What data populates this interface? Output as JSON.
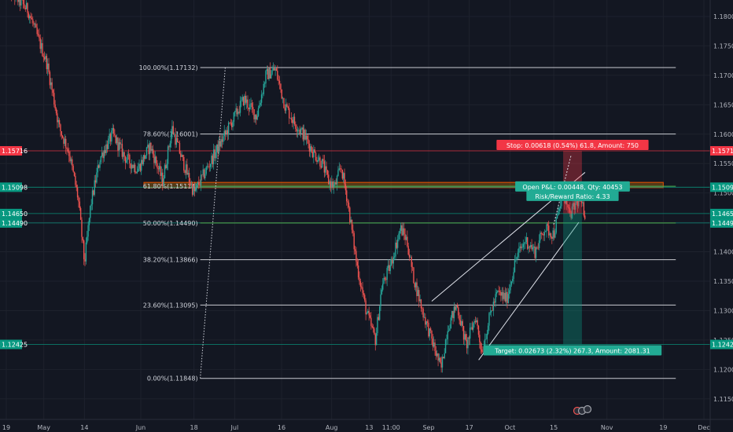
{
  "chart_data": {
    "type": "candlestick",
    "x_ticks": [
      {
        "label": "19",
        "day": 0
      },
      {
        "label": "May",
        "day": 12
      },
      {
        "label": "14",
        "day": 25
      },
      {
        "label": "Jun",
        "day": 43
      },
      {
        "label": "18",
        "day": 60
      },
      {
        "label": "Jul",
        "day": 73
      },
      {
        "label": "16",
        "day": 88
      },
      {
        "label": "Aug",
        "day": 104
      },
      {
        "label": "13",
        "day": 116
      },
      {
        "label": "11:00",
        "day": 123
      },
      {
        "label": "Sep",
        "day": 135
      },
      {
        "label": "17",
        "day": 148
      },
      {
        "label": "Oct",
        "day": 161
      },
      {
        "label": "15",
        "day": 175
      },
      {
        "label": "Nov",
        "day": 192
      },
      {
        "label": "19",
        "day": 210
      },
      {
        "label": "Dec",
        "day": 223
      }
    ],
    "y_ticks": [
      1.18,
      1.175,
      1.17,
      1.165,
      1.16,
      1.155,
      1.15,
      1.145,
      1.14,
      1.135,
      1.13,
      1.125,
      1.12,
      1.115
    ],
    "y_tick_labels": [
      "1.18000",
      "1.17500",
      "1.17000",
      "1.16500",
      "1.16000",
      "1.15500",
      "1.15000",
      "1.14500",
      "1.14000",
      "1.13500",
      "1.13000",
      "1.12500",
      "1.12000",
      "1.11500"
    ],
    "ylim": [
      1.1115,
      1.1828
    ],
    "xlim": [
      -2,
      225
    ],
    "fib_levels": [
      {
        "label": "100.00%(1.17132)",
        "value": 1.17132
      },
      {
        "label": "78.60%(1.16001)",
        "value": 1.16001
      },
      {
        "label": "61.80%(1.15114)",
        "value": 1.15114
      },
      {
        "label": "50.00%(1.14490)",
        "value": 1.1449
      },
      {
        "label": "38.20%(1.13866)",
        "value": 1.13866
      },
      {
        "label": "23.60%(1.13095)",
        "value": 1.13095
      },
      {
        "label": "0.00%(1.11848)",
        "value": 1.11848
      }
    ],
    "fib_x_start_day": 62,
    "fib_x_end_day": 214,
    "fib_diagonal": {
      "from_day": 62,
      "from_value": 1.11848,
      "to_day": 70,
      "to_value": 1.17132
    },
    "zone_rect": {
      "from_day": 44,
      "to_day": 210,
      "top": 1.1518,
      "bottom": 1.1509
    },
    "channel": {
      "upper": {
        "from_day": 136,
        "from_value": 1.1316,
        "to_day": 185,
        "to_value": 1.1535
      },
      "lower": {
        "from_day": 151,
        "from_value": 1.1216,
        "to_day": 183,
        "to_value": 1.145
      }
    },
    "price_lines": [
      {
        "value": 1.15716,
        "label": "1.15716",
        "color": "#f23645"
      },
      {
        "value": 1.15098,
        "label": "1.15098",
        "color": "#089981"
      },
      {
        "value": 1.1465,
        "label": "1.14650",
        "color": "#089981"
      },
      {
        "value": 1.1449,
        "label": "1.14490",
        "color": "#089981"
      },
      {
        "value": 1.12425,
        "label": "1.12425",
        "color": "#089981"
      }
    ],
    "position": {
      "from_day": 178,
      "to_day": 184,
      "entry": 1.1465,
      "stop": 1.15716,
      "target": 1.12425,
      "stop_label": "Stop: 0.00618 (0.54%) 61.8, Amount: 750",
      "open_label": "Open P&L: 0.00448, Qty: 40453",
      "rr_label": "Risk/Reward Ratio: 4.33",
      "target_label": "Target: 0.02673 (2.32%) 267.3, Amount: 2081.31"
    },
    "anchors": [
      [
        0,
        1.185
      ],
      [
        7,
        1.181
      ],
      [
        13,
        1.172
      ],
      [
        17,
        1.161
      ],
      [
        20,
        1.157
      ],
      [
        23,
        1.149
      ],
      [
        25,
        1.138
      ],
      [
        27,
        1.148
      ],
      [
        30,
        1.156
      ],
      [
        34,
        1.16
      ],
      [
        38,
        1.156
      ],
      [
        42,
        1.154
      ],
      [
        46,
        1.158
      ],
      [
        50,
        1.152
      ],
      [
        53,
        1.161
      ],
      [
        56,
        1.156
      ],
      [
        60,
        1.15
      ],
      [
        64,
        1.154
      ],
      [
        68,
        1.158
      ],
      [
        72,
        1.162
      ],
      [
        76,
        1.166
      ],
      [
        80,
        1.163
      ],
      [
        83,
        1.17
      ],
      [
        86,
        1.171
      ],
      [
        89,
        1.165
      ],
      [
        92,
        1.162
      ],
      [
        95,
        1.16
      ],
      [
        98,
        1.157
      ],
      [
        101,
        1.155
      ],
      [
        103,
        1.152
      ],
      [
        105,
        1.151
      ],
      [
        107,
        1.1545
      ],
      [
        109,
        1.149
      ],
      [
        112,
        1.138
      ],
      [
        115,
        1.13
      ],
      [
        118,
        1.125
      ],
      [
        120,
        1.134
      ],
      [
        123,
        1.138
      ],
      [
        126,
        1.144
      ],
      [
        128,
        1.142
      ],
      [
        130,
        1.136
      ],
      [
        133,
        1.13
      ],
      [
        136,
        1.125
      ],
      [
        139,
        1.12
      ],
      [
        141,
        1.127
      ],
      [
        144,
        1.131
      ],
      [
        147,
        1.124
      ],
      [
        150,
        1.129
      ],
      [
        152,
        1.123
      ],
      [
        155,
        1.13
      ],
      [
        157,
        1.133
      ],
      [
        160,
        1.132
      ],
      [
        163,
        1.139
      ],
      [
        166,
        1.142
      ],
      [
        169,
        1.14
      ],
      [
        172,
        1.144
      ],
      [
        175,
        1.143
      ],
      [
        178,
        1.15
      ],
      [
        180,
        1.146
      ],
      [
        183,
        1.149
      ],
      [
        185,
        1.1465
      ]
    ]
  }
}
